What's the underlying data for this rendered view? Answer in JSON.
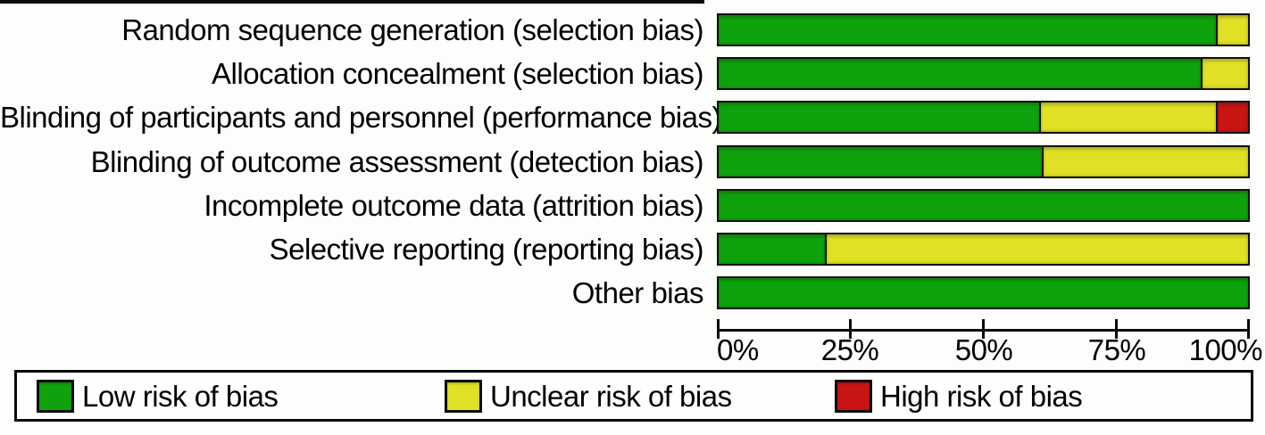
{
  "chart_data": {
    "type": "bar",
    "orientation": "horizontal-stacked",
    "title": "",
    "xlabel": "",
    "ylabel": "",
    "x_axis": {
      "range": [
        0,
        100
      ],
      "tick_labels": [
        "0%",
        "25%",
        "50%",
        "75%",
        "100%"
      ],
      "unit": "percent"
    },
    "grid": false,
    "legend_position": "bottom",
    "categories": [
      "Random sequence generation (selection bias)",
      "Allocation concealment (selection bias)",
      "Blinding of participants and personnel (performance bias)",
      "Blinding of outcome assessment (detection bias)",
      "Incomplete outcome data (attrition bias)",
      "Selective reporting (reporting bias)",
      "Other bias"
    ],
    "series": [
      {
        "name": "Low risk of bias",
        "color": "#0EA30D",
        "values": [
          94,
          91,
          60.5,
          61,
          100,
          20,
          100
        ]
      },
      {
        "name": "Unclear risk of bias",
        "color": "#E0E125",
        "values": [
          6,
          9,
          33.5,
          39,
          0,
          80,
          0
        ]
      },
      {
        "name": "High risk of bias",
        "color": "#C91414",
        "values": [
          0,
          0,
          6,
          0,
          0,
          0,
          0
        ]
      }
    ]
  },
  "layout_colors": {
    "bar_border": "#101010",
    "axis": "#0a0a0a",
    "background": "#fdfdfb"
  }
}
